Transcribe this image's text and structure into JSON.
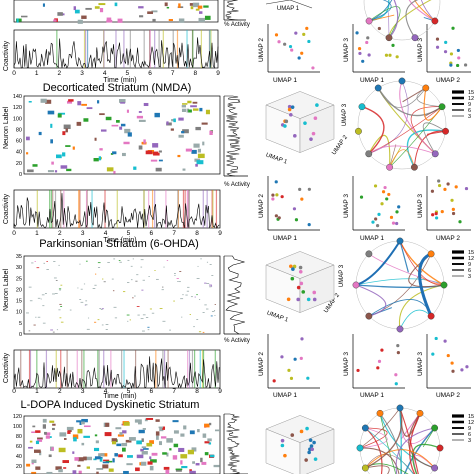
{
  "figure": {
    "panels": [
      {
        "title": "",
        "raster_ylabel": "",
        "raster_yticks": [],
        "coactivity_ylabel": "Coactivity",
        "time_xticks": [
          "0",
          "1",
          "2",
          "3",
          "4",
          "5",
          "6",
          "7",
          "8",
          "9"
        ],
        "time_xlabel": "Time (min)",
        "activity_xlabel": "% Activity",
        "umap_labels": {
          "a": "UMAP 1",
          "b_x": "UMAP 1",
          "b_y": "UMAP 2",
          "c_x": "UMAP 1",
          "c_y": "UMAP 3",
          "d_x": "UMAP 2",
          "d_y": "UMAP 3"
        },
        "legend_values": []
      },
      {
        "title": "Decorticated Striatum (NMDA)",
        "raster_ylabel": "Neuron Label",
        "raster_yticks": [
          "0",
          "20",
          "40",
          "60",
          "80",
          "100",
          "120",
          "140"
        ],
        "coactivity_ylabel": "Coactivity",
        "time_xticks": [
          "0",
          "1",
          "2",
          "3",
          "4",
          "5",
          "6",
          "7",
          "8",
          "9"
        ],
        "time_xlabel": "Time (min)",
        "activity_xlabel": "% Activity",
        "umap_labels": {
          "a": "UMAP 1",
          "a2": "UMAP 2",
          "a3": "UMAP 3",
          "b_x": "UMAP 1",
          "b_y": "UMAP 2",
          "c_x": "UMAP 1",
          "c_y": "UMAP 3",
          "d_x": "UMAP 2",
          "d_y": "UMAP 3"
        },
        "legend_values": [
          "15",
          "12",
          "9",
          "6",
          "3"
        ]
      },
      {
        "title": "Parkinsonian Striatum (6-OHDA)",
        "raster_ylabel": "Neuron Label",
        "raster_yticks": [
          "0",
          "5",
          "10",
          "15",
          "20",
          "25",
          "30",
          "35"
        ],
        "coactivity_ylabel": "Coactivity",
        "time_xticks": [
          "0",
          "1",
          "2",
          "3",
          "4",
          "5",
          "6",
          "7",
          "8",
          "9"
        ],
        "time_xlabel": "Time (min)",
        "activity_xlabel": "% Activity",
        "umap_labels": {
          "a": "UMAP 1",
          "a2": "UMAP 2",
          "a3": "UMAP 3",
          "b_x": "UMAP 1",
          "b_y": "UMAP 2",
          "c_x": "UMAP 1",
          "c_y": "UMAP 3",
          "d_x": "UMAP 2",
          "d_y": "UMAP 3"
        },
        "legend_values": [
          "15",
          "12",
          "9",
          "6",
          "3"
        ]
      },
      {
        "title": "L-DOPA Induced Dyskinetic Striatum",
        "raster_ylabel": "",
        "raster_yticks": [
          "0",
          "20",
          "40",
          "60",
          "80",
          "100",
          "120"
        ],
        "coactivity_ylabel": "",
        "time_xticks": [],
        "time_xlabel": "",
        "activity_xlabel": "",
        "umap_labels": {},
        "legend_values": [
          "15",
          "12",
          "9",
          "6",
          "3"
        ]
      }
    ]
  },
  "colors": {
    "states": [
      "#1f77b4",
      "#ff7f0e",
      "#2ca02c",
      "#d62728",
      "#9467bd",
      "#8c564b",
      "#e377c2",
      "#7f7f7f",
      "#bcbd22",
      "#17becf"
    ],
    "trace": "#000000",
    "text": "#111111"
  }
}
